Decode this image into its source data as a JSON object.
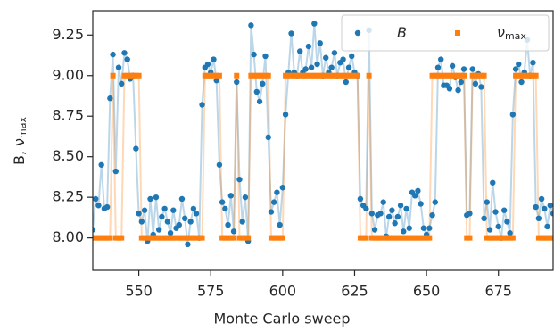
{
  "chart_data": {
    "type": "scatter_line",
    "xlabel": "Monte Carlo sweep",
    "ylabel": "B,  ν",
    "ylabel_subscript": "max",
    "xlim": [
      534,
      694
    ],
    "ylim": [
      7.8,
      9.4
    ],
    "xticks": [
      550,
      575,
      600,
      625,
      650,
      675
    ],
    "yticks": [
      {
        "value": 8,
        "label": "8.00"
      },
      8.25,
      {
        "value": 8.5,
        "label": "8.50"
      },
      8.75,
      {
        "value": 9,
        "label": "9.00"
      },
      9.25
    ],
    "legend": "upper right",
    "x": [
      534,
      535,
      536,
      537,
      538,
      539,
      540,
      541,
      542,
      543,
      544,
      545,
      546,
      547,
      548,
      549,
      550,
      551,
      552,
      553,
      554,
      555,
      556,
      557,
      558,
      559,
      560,
      561,
      562,
      563,
      564,
      565,
      566,
      567,
      568,
      569,
      570,
      571,
      572,
      573,
      574,
      575,
      576,
      577,
      578,
      579,
      580,
      581,
      582,
      583,
      584,
      585,
      586,
      587,
      588,
      589,
      590,
      591,
      592,
      593,
      594,
      595,
      596,
      597,
      598,
      599,
      600,
      601,
      602,
      603,
      604,
      605,
      606,
      607,
      608,
      609,
      610,
      611,
      612,
      613,
      614,
      615,
      616,
      617,
      618,
      619,
      620,
      621,
      622,
      623,
      624,
      625,
      626,
      627,
      628,
      629,
      630,
      631,
      632,
      633,
      634,
      635,
      636,
      637,
      638,
      639,
      640,
      641,
      642,
      643,
      644,
      645,
      646,
      647,
      648,
      649,
      650,
      651,
      652,
      653,
      654,
      655,
      656,
      657,
      658,
      659,
      660,
      661,
      662,
      663,
      664,
      665,
      666,
      667,
      668,
      669,
      670,
      671,
      672,
      673,
      674,
      675,
      676,
      677,
      678,
      679,
      680,
      681,
      682,
      683,
      684,
      685,
      686,
      687,
      688,
      689,
      690,
      691,
      692,
      693,
      694
    ],
    "series": [
      {
        "name": "B",
        "marker": "circle",
        "color": "#1f77b4",
        "values": [
          8.05,
          8.24,
          8.2,
          8.45,
          8.18,
          8.19,
          8.86,
          9.13,
          8.41,
          9.05,
          8.95,
          9.14,
          9.1,
          8.98,
          9.0,
          8.55,
          8.15,
          8.1,
          8.17,
          7.98,
          8.24,
          8.02,
          8.25,
          8.05,
          8.13,
          8.18,
          8.1,
          8.03,
          8.17,
          8.06,
          8.08,
          8.24,
          8.12,
          7.96,
          8.1,
          8.18,
          8.15,
          8.0,
          8.82,
          9.05,
          9.07,
          9.02,
          9.1,
          8.97,
          8.45,
          8.22,
          8.18,
          8.08,
          8.26,
          8.04,
          8.96,
          8.36,
          8.1,
          8.25,
          7.98,
          9.31,
          9.13,
          8.9,
          8.84,
          8.95,
          9.12,
          8.62,
          8.16,
          8.22,
          8.28,
          8.08,
          8.31,
          8.76,
          9.02,
          9.26,
          9.02,
          9.0,
          9.15,
          9.02,
          9.04,
          9.18,
          9.05,
          9.32,
          9.07,
          9.2,
          9.0,
          9.11,
          9.02,
          9.05,
          9.14,
          9.0,
          9.08,
          9.1,
          8.96,
          9.05,
          9.12,
          9.02,
          9.0,
          8.24,
          8.2,
          8.18,
          9.28,
          8.15,
          8.05,
          8.14,
          8.15,
          8.22,
          8.01,
          8.13,
          8.17,
          8.09,
          8.13,
          8.2,
          8.04,
          8.18,
          8.06,
          8.28,
          8.26,
          8.29,
          8.21,
          8.06,
          8.02,
          8.06,
          8.14,
          8.22,
          9.05,
          9.1,
          8.94,
          8.94,
          8.92,
          9.06,
          8.99,
          8.91,
          8.96,
          9.04,
          8.14,
          8.15,
          9.04,
          8.95,
          9.01,
          8.93,
          8.12,
          8.22,
          8.05,
          8.34,
          8.16,
          8.07,
          8.0,
          8.17,
          8.1,
          8.03,
          8.76,
          9.04,
          9.07,
          8.96,
          9.02,
          9.22,
          9.0,
          9.08,
          8.19,
          8.12,
          8.24,
          8.18,
          8.07,
          8.2,
          8.15
        ]
      },
      {
        "name": "ν",
        "name_subscript": "max",
        "marker": "square",
        "color": "#ff7f0e",
        "values": [
          8,
          8,
          8,
          8,
          8,
          8,
          8,
          9,
          8,
          8,
          8,
          9,
          9,
          9,
          9,
          9,
          9,
          8,
          8,
          8,
          8,
          8,
          8,
          8,
          8,
          8,
          8,
          8,
          8,
          8,
          8,
          8,
          8,
          8,
          8,
          8,
          8,
          8,
          8,
          9,
          9,
          9,
          9,
          9,
          9,
          8,
          8,
          8,
          8,
          8,
          9,
          8,
          8,
          8,
          8,
          9,
          9,
          9,
          9,
          9,
          9,
          9,
          8,
          8,
          8,
          8,
          8,
          9,
          9,
          9,
          9,
          9,
          9,
          9,
          9,
          9,
          9,
          9,
          9,
          9,
          9,
          9,
          9,
          9,
          9,
          9,
          9,
          9,
          9,
          9,
          9,
          9,
          9,
          8,
          8,
          8,
          9,
          8,
          8,
          8,
          8,
          8,
          8,
          8,
          8,
          8,
          8,
          8,
          8,
          8,
          8,
          8,
          8,
          8,
          8,
          8,
          8,
          8,
          9,
          9,
          9,
          9,
          9,
          9,
          9,
          9,
          9,
          9,
          9,
          9,
          8,
          8,
          9,
          9,
          9,
          9,
          9,
          8,
          8,
          8,
          8,
          8,
          8,
          8,
          8,
          8,
          8,
          9,
          9,
          9,
          9,
          9,
          9,
          9,
          9,
          8,
          8,
          8,
          8,
          8,
          8
        ]
      }
    ]
  }
}
